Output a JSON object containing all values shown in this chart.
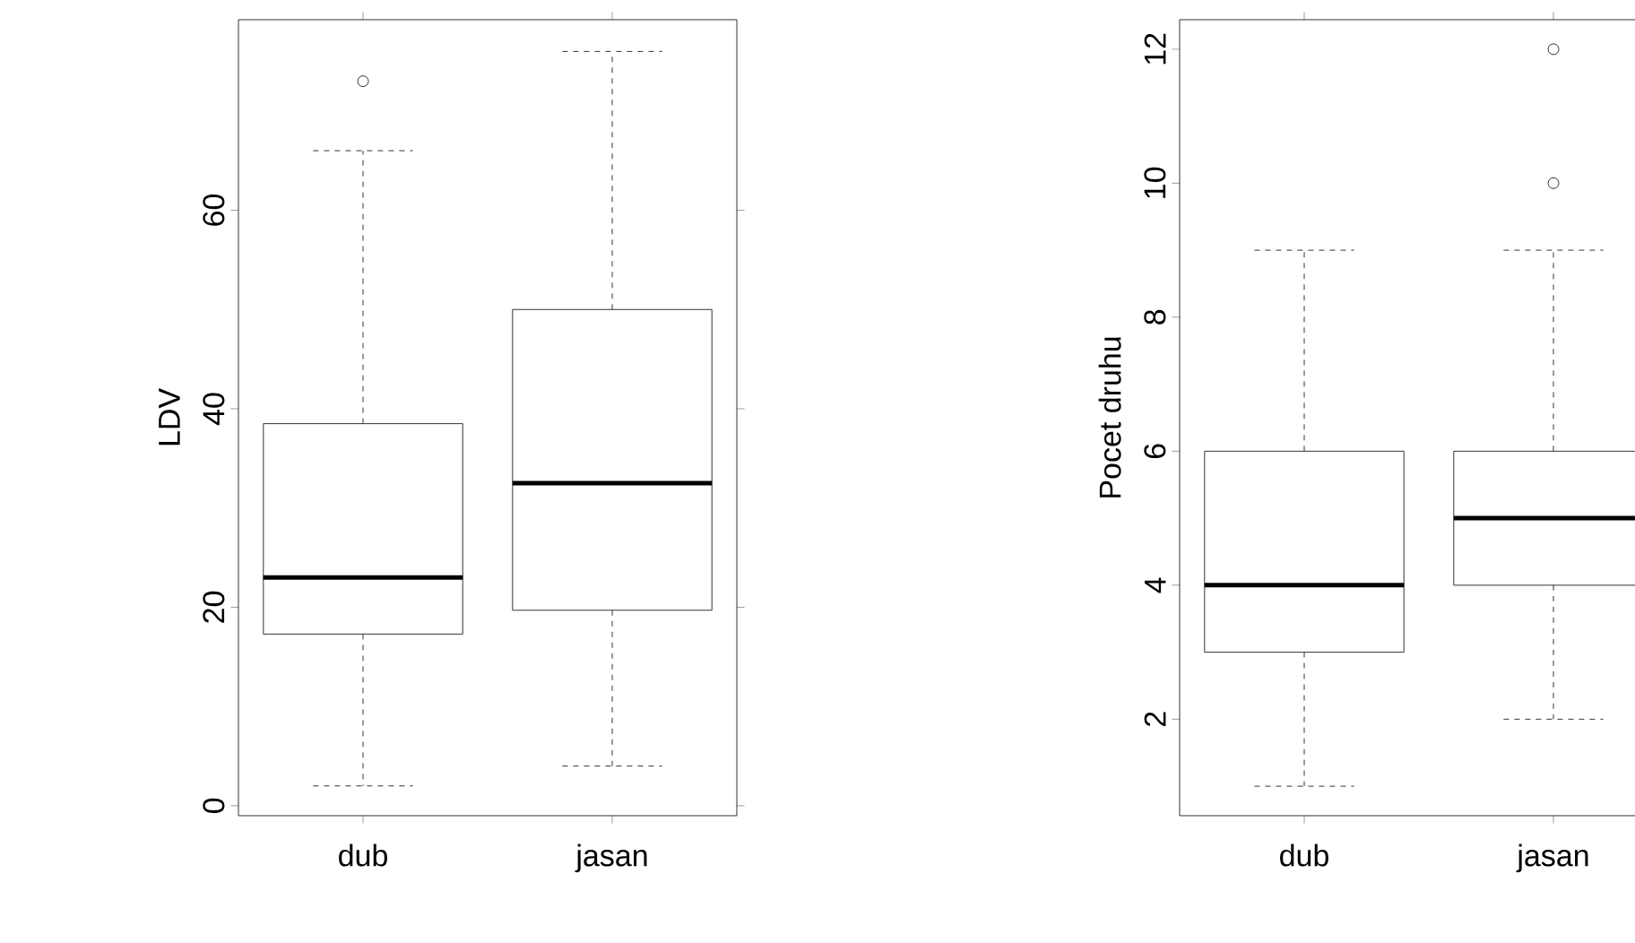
{
  "chart_data": [
    {
      "type": "box",
      "categories": [
        "dub",
        "jasan"
      ],
      "ylabel": "LDV",
      "ylim": [
        -1,
        79.2
      ],
      "yticks": [
        0,
        20,
        40,
        60
      ],
      "boxes": [
        {
          "low": 2,
          "q1": 17.3,
          "median": 23,
          "q3": 38.5,
          "high": 66,
          "outliers": [
            73
          ]
        },
        {
          "low": 4,
          "q1": 19.7,
          "median": 32.5,
          "q3": 50,
          "high": 76
        }
      ]
    },
    {
      "type": "box",
      "categories": [
        "dub",
        "jasan"
      ],
      "ylabel": "Pocet druhu",
      "ylim": [
        0.56,
        12.44
      ],
      "yticks": [
        2,
        4,
        6,
        8,
        10,
        12
      ],
      "boxes": [
        {
          "low": 1,
          "q1": 3,
          "median": 4,
          "q3": 6,
          "high": 9
        },
        {
          "low": 2,
          "q1": 4,
          "median": 5,
          "q3": 6,
          "high": 9,
          "outliers": [
            10,
            12
          ]
        }
      ]
    }
  ]
}
